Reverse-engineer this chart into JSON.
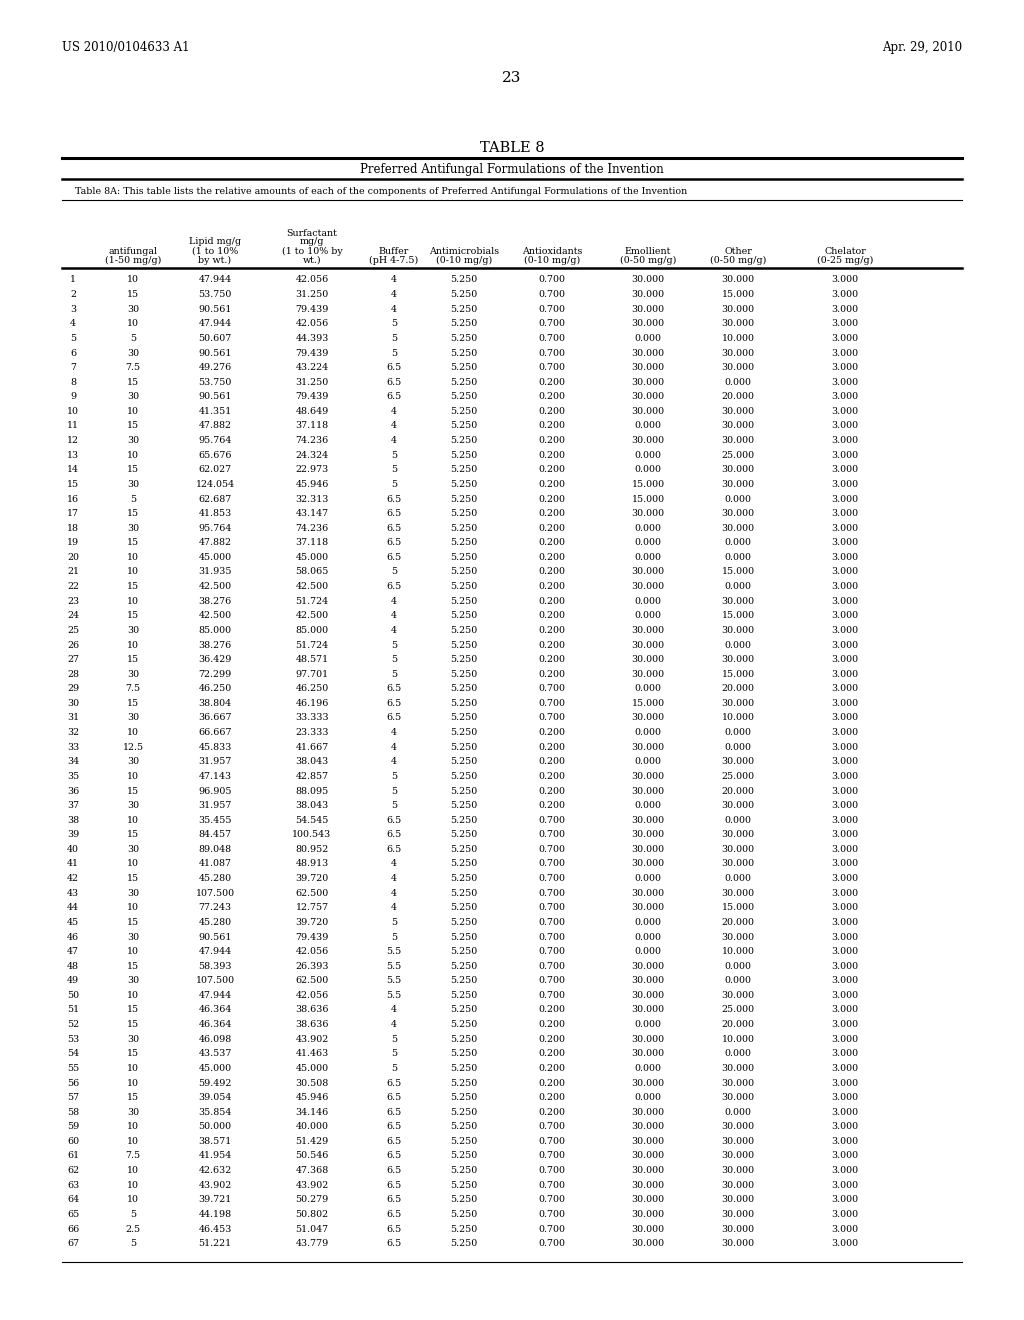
{
  "title": "TABLE 8",
  "header_line1": "Preferred Antifungal Formulations of the Invention",
  "header_line2": "Table 8A: This table lists the relative amounts of each of the components of Preferred Antifungal Formulations of the Invention",
  "page_left": "US 2010/0104633 A1",
  "page_right": "Apr. 29, 2010",
  "page_num": "23",
  "col_headers_line1": [
    "",
    "",
    "",
    "Surfactant",
    "",
    "",
    "",
    "",
    "",
    ""
  ],
  "col_headers_line2": [
    "",
    "",
    "Lipid mg/g",
    "mg/g",
    "",
    "",
    "",
    "",
    "",
    ""
  ],
  "col_headers_line3": [
    "",
    "antifungal",
    "(1 to 10%",
    "(1 to 10% by",
    "Buffer",
    "Antimicrobials",
    "Antioxidants",
    "Emollient",
    "Other",
    "Chelator"
  ],
  "col_headers_line4": [
    "",
    "(1-50 mg/g)",
    "by wt.)",
    "wt.)",
    "(pH 4-7.5)",
    "(0-10 mg/g)",
    "(0-10 mg/g)",
    "(0-50 mg/g)",
    "(0-50 mg/g)",
    "(0-25 mg/g)"
  ],
  "rows": [
    [
      1,
      10,
      47.944,
      42.056,
      4,
      5.25,
      0.7,
      30.0,
      30.0,
      3.0
    ],
    [
      2,
      15,
      53.75,
      31.25,
      4,
      5.25,
      0.7,
      30.0,
      15.0,
      3.0
    ],
    [
      3,
      30,
      90.561,
      79.439,
      4,
      5.25,
      0.7,
      30.0,
      30.0,
      3.0
    ],
    [
      4,
      10,
      47.944,
      42.056,
      5,
      5.25,
      0.7,
      30.0,
      30.0,
      3.0
    ],
    [
      5,
      5,
      50.607,
      44.393,
      5,
      5.25,
      0.7,
      0.0,
      10.0,
      3.0
    ],
    [
      6,
      30,
      90.561,
      79.439,
      5,
      5.25,
      0.7,
      30.0,
      30.0,
      3.0
    ],
    [
      7,
      7.5,
      49.276,
      43.224,
      6.5,
      5.25,
      0.7,
      30.0,
      30.0,
      3.0
    ],
    [
      8,
      15,
      53.75,
      31.25,
      6.5,
      5.25,
      0.2,
      30.0,
      0.0,
      3.0
    ],
    [
      9,
      30,
      90.561,
      79.439,
      6.5,
      5.25,
      0.2,
      30.0,
      20.0,
      3.0
    ],
    [
      10,
      10,
      41.351,
      48.649,
      4,
      5.25,
      0.2,
      30.0,
      30.0,
      3.0
    ],
    [
      11,
      15,
      47.882,
      37.118,
      4,
      5.25,
      0.2,
      0.0,
      30.0,
      3.0
    ],
    [
      12,
      30,
      95.764,
      74.236,
      4,
      5.25,
      0.2,
      30.0,
      30.0,
      3.0
    ],
    [
      13,
      10,
      65.676,
      24.324,
      5,
      5.25,
      0.2,
      0.0,
      25.0,
      3.0
    ],
    [
      14,
      15,
      62.027,
      22.973,
      5,
      5.25,
      0.2,
      0.0,
      30.0,
      3.0
    ],
    [
      15,
      30,
      124.054,
      45.946,
      5,
      5.25,
      0.2,
      15.0,
      30.0,
      3.0
    ],
    [
      16,
      5,
      62.687,
      32.313,
      6.5,
      5.25,
      0.2,
      15.0,
      0.0,
      3.0
    ],
    [
      17,
      15,
      41.853,
      43.147,
      6.5,
      5.25,
      0.2,
      30.0,
      30.0,
      3.0
    ],
    [
      18,
      30,
      95.764,
      74.236,
      6.5,
      5.25,
      0.2,
      0.0,
      30.0,
      3.0
    ],
    [
      19,
      15,
      47.882,
      37.118,
      6.5,
      5.25,
      0.2,
      0.0,
      0.0,
      3.0
    ],
    [
      20,
      10,
      45.0,
      45.0,
      6.5,
      5.25,
      0.2,
      0.0,
      0.0,
      3.0
    ],
    [
      21,
      10,
      31.935,
      58.065,
      5,
      5.25,
      0.2,
      30.0,
      15.0,
      3.0
    ],
    [
      22,
      15,
      42.5,
      42.5,
      6.5,
      5.25,
      0.2,
      30.0,
      0.0,
      3.0
    ],
    [
      23,
      10,
      38.276,
      51.724,
      4,
      5.25,
      0.2,
      0.0,
      30.0,
      3.0
    ],
    [
      24,
      15,
      42.5,
      42.5,
      4,
      5.25,
      0.2,
      0.0,
      15.0,
      3.0
    ],
    [
      25,
      30,
      85.0,
      85.0,
      4,
      5.25,
      0.2,
      30.0,
      30.0,
      3.0
    ],
    [
      26,
      10,
      38.276,
      51.724,
      5,
      5.25,
      0.2,
      30.0,
      0.0,
      3.0
    ],
    [
      27,
      15,
      36.429,
      48.571,
      5,
      5.25,
      0.2,
      30.0,
      30.0,
      3.0
    ],
    [
      28,
      30,
      72.299,
      97.701,
      5,
      5.25,
      0.2,
      30.0,
      15.0,
      3.0
    ],
    [
      29,
      7.5,
      46.25,
      46.25,
      6.5,
      5.25,
      0.7,
      0.0,
      20.0,
      3.0
    ],
    [
      30,
      15,
      38.804,
      46.196,
      6.5,
      5.25,
      0.7,
      15.0,
      30.0,
      3.0
    ],
    [
      31,
      30,
      36.667,
      33.333,
      6.5,
      5.25,
      0.7,
      30.0,
      10.0,
      3.0
    ],
    [
      32,
      10,
      66.667,
      23.333,
      4,
      5.25,
      0.2,
      0.0,
      0.0,
      3.0
    ],
    [
      33,
      12.5,
      45.833,
      41.667,
      4,
      5.25,
      0.2,
      30.0,
      0.0,
      3.0
    ],
    [
      34,
      30,
      31.957,
      38.043,
      4,
      5.25,
      0.2,
      0.0,
      30.0,
      3.0
    ],
    [
      35,
      10,
      47.143,
      42.857,
      5,
      5.25,
      0.2,
      30.0,
      25.0,
      3.0
    ],
    [
      36,
      15,
      96.905,
      88.095,
      5,
      5.25,
      0.2,
      30.0,
      20.0,
      3.0
    ],
    [
      37,
      30,
      31.957,
      38.043,
      5,
      5.25,
      0.2,
      0.0,
      30.0,
      3.0
    ],
    [
      38,
      10,
      35.455,
      54.545,
      6.5,
      5.25,
      0.7,
      30.0,
      0.0,
      3.0
    ],
    [
      39,
      15,
      84.457,
      100.543,
      6.5,
      5.25,
      0.7,
      30.0,
      30.0,
      3.0
    ],
    [
      40,
      30,
      89.048,
      80.952,
      6.5,
      5.25,
      0.7,
      30.0,
      30.0,
      3.0
    ],
    [
      41,
      10,
      41.087,
      48.913,
      4,
      5.25,
      0.7,
      30.0,
      30.0,
      3.0
    ],
    [
      42,
      15,
      45.28,
      39.72,
      4,
      5.25,
      0.7,
      0.0,
      0.0,
      3.0
    ],
    [
      43,
      30,
      107.5,
      62.5,
      4,
      5.25,
      0.7,
      30.0,
      30.0,
      3.0
    ],
    [
      44,
      10,
      77.243,
      12.757,
      4,
      5.25,
      0.7,
      30.0,
      15.0,
      3.0
    ],
    [
      45,
      15,
      45.28,
      39.72,
      5,
      5.25,
      0.7,
      0.0,
      20.0,
      3.0
    ],
    [
      46,
      30,
      90.561,
      79.439,
      5,
      5.25,
      0.7,
      0.0,
      30.0,
      3.0
    ],
    [
      47,
      10,
      47.944,
      42.056,
      5.5,
      5.25,
      0.7,
      0.0,
      10.0,
      3.0
    ],
    [
      48,
      15,
      58.393,
      26.393,
      5.5,
      5.25,
      0.7,
      30.0,
      0.0,
      3.0
    ],
    [
      49,
      30,
      107.5,
      62.5,
      5.5,
      5.25,
      0.7,
      30.0,
      0.0,
      3.0
    ],
    [
      50,
      10,
      47.944,
      42.056,
      5.5,
      5.25,
      0.7,
      30.0,
      30.0,
      3.0
    ],
    [
      51,
      15,
      46.364,
      38.636,
      4,
      5.25,
      0.2,
      30.0,
      25.0,
      3.0
    ],
    [
      52,
      15,
      46.364,
      38.636,
      4,
      5.25,
      0.2,
      0.0,
      20.0,
      3.0
    ],
    [
      53,
      30,
      46.098,
      43.902,
      5,
      5.25,
      0.2,
      30.0,
      10.0,
      3.0
    ],
    [
      54,
      15,
      43.537,
      41.463,
      5,
      5.25,
      0.2,
      30.0,
      0.0,
      3.0
    ],
    [
      55,
      10,
      45.0,
      45.0,
      5,
      5.25,
      0.2,
      0.0,
      30.0,
      3.0
    ],
    [
      56,
      10,
      59.492,
      30.508,
      6.5,
      5.25,
      0.2,
      30.0,
      30.0,
      3.0
    ],
    [
      57,
      15,
      39.054,
      45.946,
      6.5,
      5.25,
      0.2,
      0.0,
      30.0,
      3.0
    ],
    [
      58,
      30,
      35.854,
      34.146,
      6.5,
      5.25,
      0.2,
      30.0,
      0.0,
      3.0
    ],
    [
      59,
      10,
      50.0,
      40.0,
      6.5,
      5.25,
      0.7,
      30.0,
      30.0,
      3.0
    ],
    [
      60,
      10,
      38.571,
      51.429,
      6.5,
      5.25,
      0.7,
      30.0,
      30.0,
      3.0
    ],
    [
      61,
      7.5,
      41.954,
      50.546,
      6.5,
      5.25,
      0.7,
      30.0,
      30.0,
      3.0
    ],
    [
      62,
      10,
      42.632,
      47.368,
      6.5,
      5.25,
      0.7,
      30.0,
      30.0,
      3.0
    ],
    [
      63,
      10,
      43.902,
      43.902,
      6.5,
      5.25,
      0.7,
      30.0,
      30.0,
      3.0
    ],
    [
      64,
      10,
      39.721,
      50.279,
      6.5,
      5.25,
      0.7,
      30.0,
      30.0,
      3.0
    ],
    [
      65,
      5,
      44.198,
      50.802,
      6.5,
      5.25,
      0.7,
      30.0,
      30.0,
      3.0
    ],
    [
      66,
      2.5,
      46.453,
      51.047,
      6.5,
      5.25,
      0.7,
      30.0,
      30.0,
      3.0
    ],
    [
      67,
      5,
      51.221,
      43.779,
      6.5,
      5.25,
      0.7,
      30.0,
      30.0,
      3.0
    ]
  ]
}
